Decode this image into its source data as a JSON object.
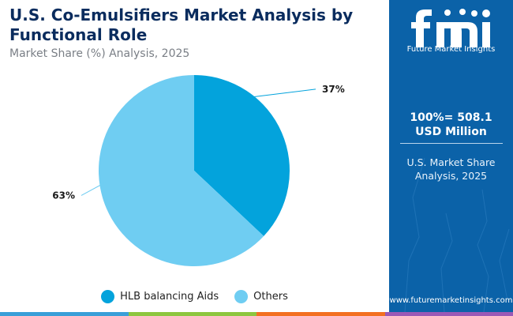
{
  "header": {
    "title": "U.S. Co-Emulsifiers Market Analysis by Functional Role",
    "subtitle": "Market Share (%) Analysis, 2025"
  },
  "chart_data": {
    "type": "pie",
    "title": "U.S. Co-Emulsifiers Market Analysis by Functional Role",
    "subtitle": "Market Share (%) Analysis, 2025",
    "slices": [
      {
        "label": "HLB balancing Aids",
        "value": 37,
        "display": "37%",
        "color": "#03a3dc"
      },
      {
        "label": "Others",
        "value": 63,
        "display": "63%",
        "color": "#6fcdf2"
      }
    ],
    "legend_position": "bottom"
  },
  "sidebar": {
    "logo_text": "fmi",
    "logo_caption": "Future Market Insights",
    "total": "100%= 508.1 USD Million",
    "description": "U.S. Market Share Analysis, 2025",
    "url": "www.futuremarketinsights.com"
  },
  "colors": {
    "sidebar_bg": "#0b62a8",
    "title": "#0a2c5e",
    "bottom_bar": [
      "#3a9fd8",
      "#8dc63f",
      "#f37021",
      "#9b59b6"
    ]
  }
}
